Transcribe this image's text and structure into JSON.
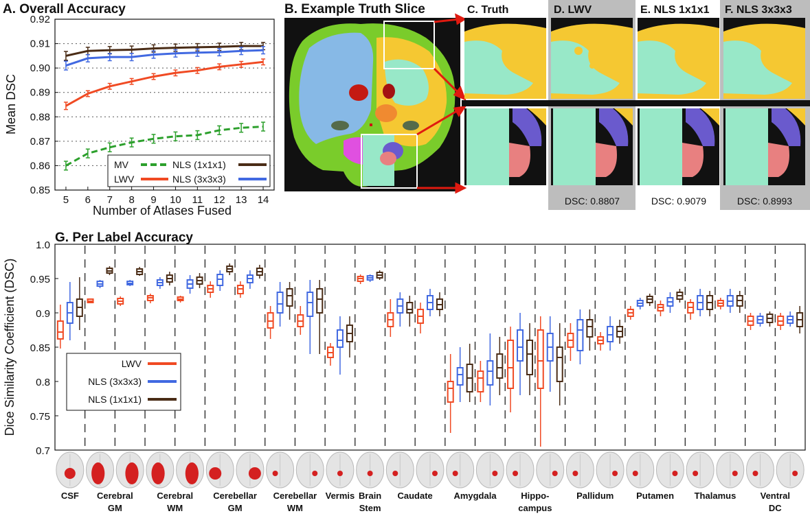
{
  "colors": {
    "mv": "#2ca02c",
    "lwv": "#f04a23",
    "nls3": "#4169e1",
    "nls1": "#4a2c16",
    "label_csf": "#87b9e6",
    "label_gm": "#f5c832",
    "label_wm": "#98e8c8",
    "label_green": "#7acc2b",
    "brain_dark": "#111111"
  },
  "panel_a": {
    "title": "A. Overall Accuracy",
    "chart_data": {
      "type": "line",
      "xlabel": "Number of Atlases Fused",
      "ylabel": "Mean DSC",
      "x": [
        5,
        6,
        7,
        8,
        9,
        10,
        11,
        12,
        13,
        14
      ],
      "xlim": [
        4.5,
        14.5
      ],
      "ylim": [
        0.85,
        0.92
      ],
      "yticks": [
        "0.85",
        "0.86",
        "0.87",
        "0.88",
        "0.89",
        "0.90",
        "0.91",
        "0.92"
      ],
      "grid": "horizontal dotted",
      "series": [
        {
          "name": "MV",
          "key": "mv",
          "dashed": true,
          "values": [
            0.86,
            0.865,
            0.8675,
            0.8695,
            0.871,
            0.872,
            0.8725,
            0.8745,
            0.8755,
            0.876
          ],
          "err": [
            0.0018,
            0.0018,
            0.0018,
            0.0018,
            0.0018,
            0.0018,
            0.0018,
            0.0018,
            0.0018,
            0.0018
          ]
        },
        {
          "name": "LWV",
          "key": "lwv",
          "dashed": false,
          "values": [
            0.8845,
            0.8895,
            0.8925,
            0.8945,
            0.8965,
            0.898,
            0.899,
            0.9005,
            0.9015,
            0.9025
          ],
          "err": [
            0.0015,
            0.0012,
            0.0012,
            0.0012,
            0.0012,
            0.0012,
            0.0012,
            0.0012,
            0.0012,
            0.0012
          ]
        },
        {
          "name": "NLS (1x1x1)",
          "key": "nls1",
          "dashed": false,
          "values": [
            0.905,
            0.907,
            0.9073,
            0.9075,
            0.908,
            0.9083,
            0.9085,
            0.9087,
            0.909,
            0.909
          ],
          "err": [
            0.0018,
            0.0015,
            0.0015,
            0.0015,
            0.0015,
            0.0015,
            0.0015,
            0.0015,
            0.0015,
            0.0015
          ]
        },
        {
          "name": "NLS (3x3x3)",
          "key": "nls3",
          "dashed": false,
          "values": [
            0.901,
            0.904,
            0.9045,
            0.9045,
            0.9055,
            0.906,
            0.9063,
            0.9065,
            0.907,
            0.9073
          ],
          "err": [
            0.0018,
            0.0015,
            0.0015,
            0.0015,
            0.0015,
            0.0015,
            0.0015,
            0.0015,
            0.0015,
            0.0015
          ]
        }
      ],
      "legend": {
        "placement": "bottom-right",
        "entries": [
          "MV",
          "NLS (1x1x1)",
          "LWV",
          "NLS (3x3x3)"
        ]
      }
    }
  },
  "panel_b": {
    "title": "B. Example Truth Slice"
  },
  "panel_c": {
    "title": "C. Truth"
  },
  "panel_d": {
    "title": "D. LWV",
    "dsc": "DSC: 0.8807"
  },
  "panel_e": {
    "title": "E. NLS 1x1x1",
    "dsc": "DSC: 0.9079"
  },
  "panel_f": {
    "title": "F. NLS 3x3x3",
    "dsc": "DSC: 0.8993"
  },
  "panel_g": {
    "title": "G. Per Label Accuracy",
    "legend": [
      "LWV",
      "NLS (3x3x3)",
      "NLS (1x1x1)"
    ],
    "chart_data": {
      "type": "box",
      "ylabel": "Dice Similarity Coefficient (DSC)",
      "ylim": [
        0.7,
        1.0
      ],
      "yticks": [
        "0.7",
        "0.75",
        "0.8",
        "0.85",
        "0.9",
        "0.95",
        "1.0"
      ],
      "legend_placement": "lower-left",
      "regions": [
        {
          "label": "CSF",
          "label2": "",
          "hemis": 1
        },
        {
          "label": "Cerebral",
          "label2": "GM",
          "hemis": 2
        },
        {
          "label": "Cerebral",
          "label2": "WM",
          "hemis": 2
        },
        {
          "label": "Cerebellar",
          "label2": "GM",
          "hemis": 2
        },
        {
          "label": "Cerebellar",
          "label2": "WM",
          "hemis": 2
        },
        {
          "label": "Vermis",
          "label2": "",
          "hemis": 1
        },
        {
          "label": "Brain",
          "label2": "Stem",
          "hemis": 1
        },
        {
          "label": "Caudate",
          "label2": "",
          "hemis": 2
        },
        {
          "label": "Amygdala",
          "label2": "",
          "hemis": 2
        },
        {
          "label": "Hippo-",
          "label2": "campus",
          "hemis": 2
        },
        {
          "label": "Pallidum",
          "label2": "",
          "hemis": 2
        },
        {
          "label": "Putamen",
          "label2": "",
          "hemis": 2
        },
        {
          "label": "Thalamus",
          "label2": "",
          "hemis": 2
        },
        {
          "label": "Ventral",
          "label2": "DC",
          "hemis": 2
        }
      ],
      "boxes": [
        {
          "series": "LWV",
          "stats": [
            0.848,
            0.862,
            0.872,
            0.888,
            0.912
          ]
        },
        {
          "series": "NLS (3x3x3)",
          "stats": [
            0.86,
            0.885,
            0.9,
            0.915,
            0.945
          ]
        },
        {
          "series": "NLS (1x1x1)",
          "stats": [
            0.875,
            0.895,
            0.908,
            0.92,
            0.952
          ]
        },
        {
          "series": "LWV",
          "stats": [
            0.914,
            0.915,
            0.917,
            0.92,
            0.921
          ]
        },
        {
          "series": "NLS (3x3x3)",
          "stats": [
            0.936,
            0.939,
            0.942,
            0.946,
            0.948
          ]
        },
        {
          "series": "NLS (1x1x1)",
          "stats": [
            0.955,
            0.958,
            0.961,
            0.965,
            0.968
          ]
        },
        {
          "series": "LWV",
          "stats": [
            0.91,
            0.913,
            0.917,
            0.921,
            0.924
          ]
        },
        {
          "series": "NLS (3x3x3)",
          "stats": [
            0.939,
            0.941,
            0.943,
            0.946,
            0.948
          ]
        },
        {
          "series": "NLS (1x1x1)",
          "stats": [
            0.954,
            0.956,
            0.96,
            0.964,
            0.967
          ]
        },
        {
          "series": "LWV",
          "stats": [
            0.914,
            0.918,
            0.922,
            0.925,
            0.928
          ]
        },
        {
          "series": "NLS (3x3x3)",
          "stats": [
            0.935,
            0.94,
            0.944,
            0.948,
            0.952
          ]
        },
        {
          "series": "NLS (1x1x1)",
          "stats": [
            0.94,
            0.945,
            0.95,
            0.955,
            0.96
          ]
        },
        {
          "series": "LWV",
          "stats": [
            0.915,
            0.918,
            0.92,
            0.923,
            0.925
          ]
        },
        {
          "series": "NLS (3x3x3)",
          "stats": [
            0.928,
            0.936,
            0.942,
            0.948,
            0.955
          ]
        },
        {
          "series": "NLS (1x1x1)",
          "stats": [
            0.936,
            0.942,
            0.947,
            0.952,
            0.958
          ]
        },
        {
          "series": "LWV",
          "stats": [
            0.922,
            0.93,
            0.935,
            0.94,
            0.946
          ]
        },
        {
          "series": "NLS (3x3x3)",
          "stats": [
            0.932,
            0.94,
            0.949,
            0.956,
            0.962
          ]
        },
        {
          "series": "NLS (1x1x1)",
          "stats": [
            0.955,
            0.96,
            0.964,
            0.968,
            0.972
          ]
        },
        {
          "series": "LWV",
          "stats": [
            0.922,
            0.928,
            0.935,
            0.94,
            0.946
          ]
        },
        {
          "series": "NLS (3x3x3)",
          "stats": [
            0.935,
            0.944,
            0.95,
            0.955,
            0.962
          ]
        },
        {
          "series": "NLS (1x1x1)",
          "stats": [
            0.95,
            0.955,
            0.96,
            0.965,
            0.97
          ]
        },
        {
          "series": "LWV",
          "stats": [
            0.862,
            0.878,
            0.888,
            0.9,
            0.91
          ]
        },
        {
          "series": "NLS (3x3x3)",
          "stats": [
            0.88,
            0.9,
            0.913,
            0.93,
            0.945
          ]
        },
        {
          "series": "NLS (1x1x1)",
          "stats": [
            0.89,
            0.91,
            0.925,
            0.935,
            0.945
          ]
        },
        {
          "series": "LWV",
          "stats": [
            0.868,
            0.88,
            0.888,
            0.897,
            0.91
          ]
        },
        {
          "series": "NLS (3x3x3)",
          "stats": [
            0.84,
            0.895,
            0.915,
            0.93,
            0.948
          ]
        },
        {
          "series": "NLS (1x1x1)",
          "stats": [
            0.84,
            0.9,
            0.92,
            0.935,
            0.948
          ]
        },
        {
          "series": "LWV",
          "stats": [
            0.823,
            0.835,
            0.842,
            0.85,
            0.856
          ]
        },
        {
          "series": "NLS (3x3x3)",
          "stats": [
            0.81,
            0.85,
            0.86,
            0.875,
            0.895
          ]
        },
        {
          "series": "NLS (1x1x1)",
          "stats": [
            0.835,
            0.858,
            0.87,
            0.882,
            0.895
          ]
        },
        {
          "series": "LWV",
          "stats": [
            0.942,
            0.946,
            0.95,
            0.953,
            0.956
          ]
        },
        {
          "series": "NLS (3x3x3)",
          "stats": [
            0.945,
            0.948,
            0.951,
            0.954,
            0.956
          ]
        },
        {
          "series": "NLS (1x1x1)",
          "stats": [
            0.948,
            0.951,
            0.955,
            0.959,
            0.962
          ]
        },
        {
          "series": "LWV",
          "stats": [
            0.865,
            0.88,
            0.89,
            0.9,
            0.92
          ]
        },
        {
          "series": "NLS (3x3x3)",
          "stats": [
            0.88,
            0.9,
            0.91,
            0.92,
            0.93
          ]
        },
        {
          "series": "NLS (1x1x1)",
          "stats": [
            0.88,
            0.9,
            0.905,
            0.915,
            0.925
          ]
        },
        {
          "series": "LWV",
          "stats": [
            0.87,
            0.885,
            0.895,
            0.905,
            0.915
          ]
        },
        {
          "series": "NLS (3x3x3)",
          "stats": [
            0.895,
            0.905,
            0.915,
            0.925,
            0.935
          ]
        },
        {
          "series": "NLS (1x1x1)",
          "stats": [
            0.895,
            0.905,
            0.912,
            0.92,
            0.93
          ]
        },
        {
          "series": "LWV",
          "stats": [
            0.725,
            0.77,
            0.79,
            0.8,
            0.84
          ]
        },
        {
          "series": "NLS (3x3x3)",
          "stats": [
            0.77,
            0.795,
            0.81,
            0.82,
            0.85
          ]
        },
        {
          "series": "NLS (1x1x1)",
          "stats": [
            0.77,
            0.785,
            0.805,
            0.825,
            0.855
          ]
        },
        {
          "series": "LWV",
          "stats": [
            0.77,
            0.785,
            0.805,
            0.815,
            0.83
          ]
        },
        {
          "series": "NLS (3x3x3)",
          "stats": [
            0.765,
            0.795,
            0.815,
            0.83,
            0.87
          ]
        },
        {
          "series": "NLS (1x1x1)",
          "stats": [
            0.78,
            0.805,
            0.82,
            0.84,
            0.865
          ]
        },
        {
          "series": "LWV",
          "stats": [
            0.755,
            0.79,
            0.82,
            0.86,
            0.88
          ]
        },
        {
          "series": "NLS (3x3x3)",
          "stats": [
            0.78,
            0.83,
            0.85,
            0.875,
            0.9
          ]
        },
        {
          "series": "NLS (1x1x1)",
          "stats": [
            0.78,
            0.81,
            0.84,
            0.86,
            0.885
          ]
        },
        {
          "series": "LWV",
          "stats": [
            0.705,
            0.79,
            0.83,
            0.875,
            0.895
          ]
        },
        {
          "series": "NLS (3x3x3)",
          "stats": [
            0.785,
            0.83,
            0.85,
            0.87,
            0.895
          ]
        },
        {
          "series": "NLS (1x1x1)",
          "stats": [
            0.765,
            0.8,
            0.835,
            0.85,
            0.885
          ]
        },
        {
          "series": "LWV",
          "stats": [
            0.83,
            0.85,
            0.86,
            0.87,
            0.885
          ]
        },
        {
          "series": "NLS (3x3x3)",
          "stats": [
            0.825,
            0.845,
            0.875,
            0.89,
            0.905
          ]
        },
        {
          "series": "NLS (1x1x1)",
          "stats": [
            0.845,
            0.865,
            0.88,
            0.89,
            0.905
          ]
        },
        {
          "series": "LWV",
          "stats": [
            0.845,
            0.855,
            0.86,
            0.865,
            0.872
          ]
        },
        {
          "series": "NLS (3x3x3)",
          "stats": [
            0.845,
            0.858,
            0.868,
            0.88,
            0.895
          ]
        },
        {
          "series": "NLS (1x1x1)",
          "stats": [
            0.855,
            0.865,
            0.873,
            0.88,
            0.89
          ]
        },
        {
          "series": "LWV",
          "stats": [
            0.89,
            0.895,
            0.9,
            0.905,
            0.91
          ]
        },
        {
          "series": "NLS (3x3x3)",
          "stats": [
            0.905,
            0.91,
            0.914,
            0.918,
            0.922
          ]
        },
        {
          "series": "NLS (1x1x1)",
          "stats": [
            0.91,
            0.915,
            0.92,
            0.924,
            0.928
          ]
        },
        {
          "series": "LWV",
          "stats": [
            0.895,
            0.903,
            0.908,
            0.912,
            0.918
          ]
        },
        {
          "series": "NLS (3x3x3)",
          "stats": [
            0.9,
            0.91,
            0.916,
            0.922,
            0.93
          ]
        },
        {
          "series": "NLS (1x1x1)",
          "stats": [
            0.915,
            0.92,
            0.925,
            0.93,
            0.935
          ]
        },
        {
          "series": "LWV",
          "stats": [
            0.89,
            0.9,
            0.908,
            0.915,
            0.92
          ]
        },
        {
          "series": "NLS (3x3x3)",
          "stats": [
            0.895,
            0.905,
            0.915,
            0.925,
            0.935
          ]
        },
        {
          "series": "NLS (1x1x1)",
          "stats": [
            0.895,
            0.905,
            0.915,
            0.925,
            0.932
          ]
        },
        {
          "series": "LWV",
          "stats": [
            0.905,
            0.91,
            0.914,
            0.918,
            0.922
          ]
        },
        {
          "series": "NLS (3x3x3)",
          "stats": [
            0.9,
            0.91,
            0.917,
            0.925,
            0.935
          ]
        },
        {
          "series": "NLS (1x1x1)",
          "stats": [
            0.9,
            0.91,
            0.918,
            0.925,
            0.932
          ]
        },
        {
          "series": "LWV",
          "stats": [
            0.875,
            0.882,
            0.888,
            0.895,
            0.9
          ]
        },
        {
          "series": "NLS (3x3x3)",
          "stats": [
            0.88,
            0.885,
            0.89,
            0.895,
            0.9
          ]
        },
        {
          "series": "NLS (1x1x1)",
          "stats": [
            0.88,
            0.886,
            0.892,
            0.898,
            0.902
          ]
        },
        {
          "series": "LWV",
          "stats": [
            0.875,
            0.882,
            0.888,
            0.895,
            0.9
          ]
        },
        {
          "series": "NLS (3x3x3)",
          "stats": [
            0.88,
            0.885,
            0.89,
            0.895,
            0.902
          ]
        },
        {
          "series": "NLS (1x1x1)",
          "stats": [
            0.87,
            0.88,
            0.89,
            0.9,
            0.91
          ]
        }
      ]
    }
  }
}
